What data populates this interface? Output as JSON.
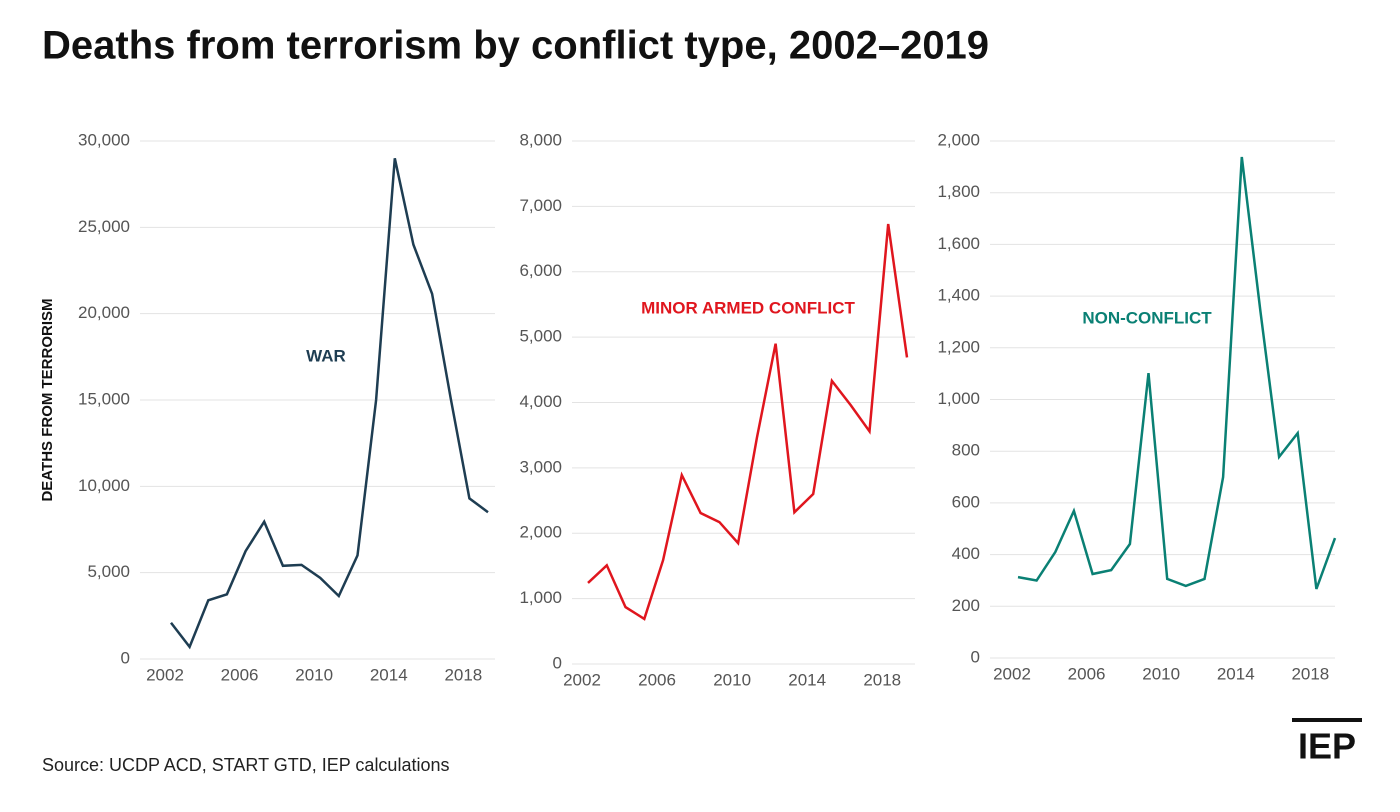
{
  "title": "Deaths from terrorism by conflict type, 2002–2019",
  "source": "Source: UCDP ACD, START GTD, IEP calculations",
  "logo": "IEP",
  "chart_data": [
    {
      "type": "line",
      "y_label": "DEATHS FROM TERRORISM",
      "annotation": "WAR",
      "x": [
        2002,
        2003,
        2004,
        2005,
        2006,
        2007,
        2008,
        2009,
        2010,
        2011,
        2012,
        2013,
        2014,
        2015,
        2016,
        2017,
        2018,
        2019
      ],
      "xlim": [
        2002,
        2019
      ],
      "xticks": [
        2002,
        2006,
        2010,
        2014,
        2018
      ],
      "ylim": [
        0,
        30000
      ],
      "yticks": [
        0,
        {
          "value": 5000,
          "label": "5,000"
        },
        {
          "value": 10000,
          "label": "10,000"
        },
        {
          "value": 15000,
          "label": "15,000"
        },
        {
          "value": 20000,
          "label": "20,000"
        },
        {
          "value": 25000,
          "label": "25,000"
        },
        {
          "value": 30000,
          "label": "30,000"
        }
      ],
      "grid": true,
      "series": [
        {
          "name": "WAR",
          "color": "#1e3d52",
          "values": [
            2100,
            700,
            3400,
            3750,
            6250,
            7950,
            5400,
            5450,
            4700,
            3650,
            6000,
            15000,
            29000,
            24000,
            21150,
            15100,
            9300,
            8500
          ]
        }
      ]
    },
    {
      "type": "line",
      "annotation": "MINOR ARMED CONFLICT",
      "x": [
        2002,
        2003,
        2004,
        2005,
        2006,
        2007,
        2008,
        2009,
        2010,
        2011,
        2012,
        2013,
        2014,
        2015,
        2016,
        2017,
        2018,
        2019
      ],
      "xlim": [
        2002,
        2019
      ],
      "xticks": [
        2002,
        2006,
        2010,
        2014,
        2018
      ],
      "ylim": [
        0,
        8000
      ],
      "yticks": [
        0,
        {
          "value": 1000,
          "label": "1,000"
        },
        {
          "value": 2000,
          "label": "2,000"
        },
        {
          "value": 3000,
          "label": "3,000"
        },
        {
          "value": 4000,
          "label": "4,000"
        },
        {
          "value": 5000,
          "label": "5,000"
        },
        {
          "value": 6000,
          "label": "6,000"
        },
        {
          "value": 7000,
          "label": "7,000"
        },
        {
          "value": 8000,
          "label": "8,000"
        }
      ],
      "grid": true,
      "series": [
        {
          "name": "MINOR ARMED CONFLICT",
          "color": "#e0161e",
          "values": [
            1240,
            1510,
            870,
            690,
            1590,
            2890,
            2310,
            2170,
            1850,
            3460,
            4900,
            2320,
            2600,
            4330,
            3960,
            3560,
            6730,
            4690
          ]
        }
      ]
    },
    {
      "type": "line",
      "annotation": "NON-CONFLICT",
      "x": [
        2002,
        2003,
        2004,
        2005,
        2006,
        2007,
        2008,
        2009,
        2010,
        2011,
        2012,
        2013,
        2014,
        2015,
        2016,
        2017,
        2018,
        2019
      ],
      "xlim": [
        2002,
        2019
      ],
      "xticks": [
        2002,
        2006,
        2010,
        2014,
        2018
      ],
      "ylim": [
        0,
        2000
      ],
      "yticks": [
        0,
        200,
        400,
        600,
        800,
        {
          "value": 1000,
          "label": "1,000"
        },
        {
          "value": 1200,
          "label": "1,200"
        },
        {
          "value": 1400,
          "label": "1,400"
        },
        {
          "value": 1600,
          "label": "1,600"
        },
        {
          "value": 1800,
          "label": "1,800"
        },
        {
          "value": 2000,
          "label": "2,000"
        }
      ],
      "grid": true,
      "series": [
        {
          "name": "NON-CONFLICT",
          "color": "#0a8074",
          "values": [
            313,
            300,
            410,
            569,
            325,
            340,
            441,
            1102,
            306,
            279,
            306,
            700,
            1938,
            1342,
            778,
            870,
            267,
            464
          ]
        }
      ]
    }
  ]
}
